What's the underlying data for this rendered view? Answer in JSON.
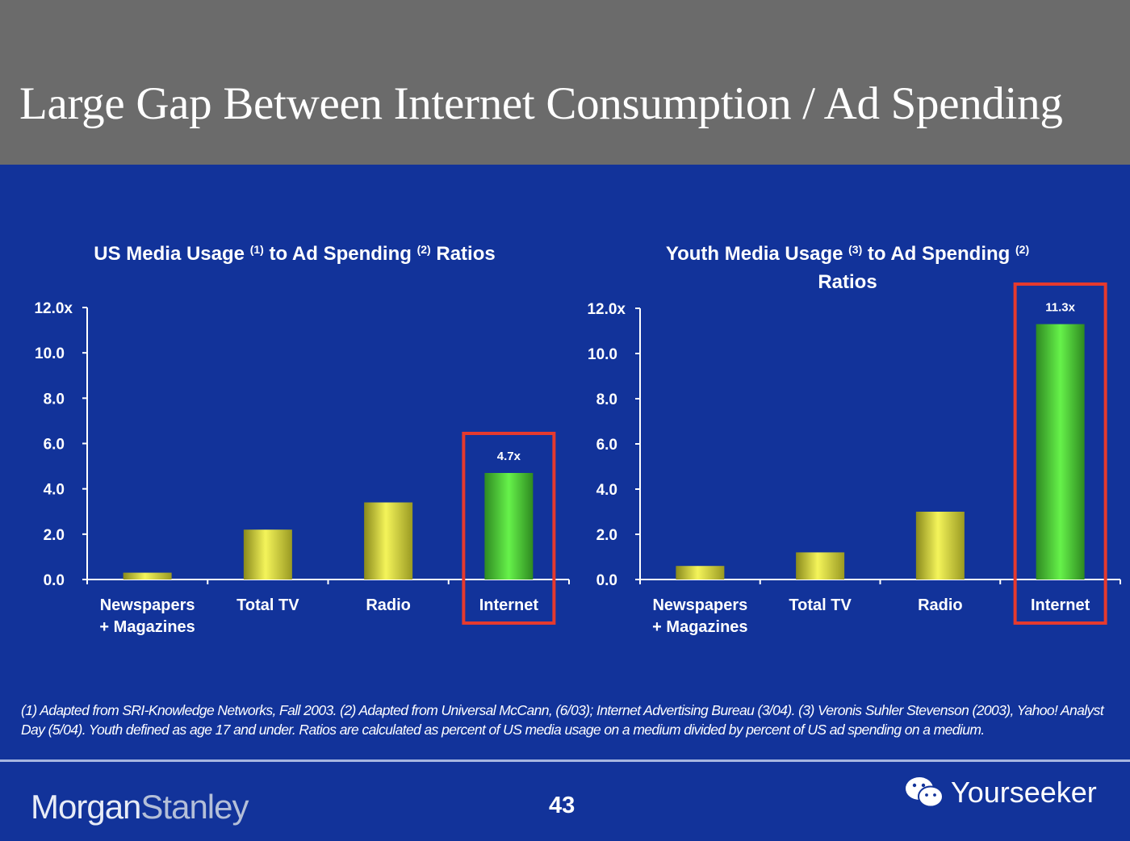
{
  "header": {
    "title": "Large Gap Between Internet Consumption / Ad Spending"
  },
  "colors": {
    "background": "#12339a",
    "header": "#6b6b6b",
    "bar": "#e8e84a",
    "highlight_bar": "#4fe03a",
    "highlight_box": "#e53a2e"
  },
  "chart_data": [
    {
      "type": "bar",
      "title_parts": [
        "US Media Usage ",
        "(1)",
        " to Ad Spending ",
        "(2)",
        " Ratios"
      ],
      "categories": [
        "Newspapers\n+ Magazines",
        "Total TV",
        "Radio",
        "Internet"
      ],
      "values": [
        0.3,
        2.2,
        3.4,
        4.7
      ],
      "data_labels": [
        "",
        "",
        "",
        "4.7x"
      ],
      "highlight": "Internet",
      "yticks": [
        "0.0",
        "2.0",
        "4.0",
        "6.0",
        "8.0",
        "10.0",
        "12.0x"
      ],
      "ylim": [
        0,
        12
      ],
      "grid": false
    },
    {
      "type": "bar",
      "title_parts": [
        "Youth Media Usage ",
        "(3)",
        " to Ad Spending ",
        "(2)",
        "Ratios"
      ],
      "categories": [
        "Newspapers\n+ Magazines",
        "Total TV",
        "Radio",
        "Internet"
      ],
      "values": [
        0.6,
        1.2,
        3.0,
        11.3
      ],
      "data_labels": [
        "",
        "",
        "",
        "11.3x"
      ],
      "highlight": "Internet",
      "yticks": [
        "0.0",
        "2.0",
        "4.0",
        "6.0",
        "8.0",
        "10.0",
        "12.0x"
      ],
      "ylim": [
        0,
        12
      ],
      "grid": false
    }
  ],
  "footnote": "(1) Adapted from SRI-Knowledge Networks, Fall 2003.  (2) Adapted from Universal McCann, (6/03); Internet Advertising Bureau (3/04). (3) Veronis Suhler Stevenson (2003), Yahoo! Analyst Day (5/04).  Youth defined as age 17 and under.  Ratios are calculated as percent of US media usage on a medium divided by percent of US ad spending on a medium.",
  "footer": {
    "logo_word1": "Morgan",
    "logo_word2": "Stanley",
    "page_number": "43",
    "watermark": "Yourseeker",
    "watermark_icon": "wechat-icon"
  }
}
